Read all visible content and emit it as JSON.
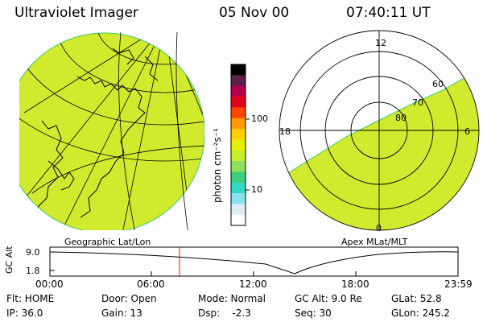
{
  "header": {
    "title": "Ultraviolet Imager",
    "date": "05 Nov 00",
    "time": "07:40:11 UT"
  },
  "colorbar": {
    "label": "photon cm⁻²s⁻¹",
    "ticks": [
      "100",
      "10"
    ],
    "colors": [
      "#000000",
      "#5a1f4b",
      "#b0004b",
      "#e0001a",
      "#ff4500",
      "#ff9b00",
      "#ffd000",
      "#e8ee00",
      "#c7ee2e",
      "#8ee05a",
      "#3ccf7a",
      "#33d9c7",
      "#86e3ec",
      "#d8eef4",
      "#ffffff"
    ]
  },
  "left_panel": {
    "caption": "Geographic Lat/Lon",
    "fill_color": "#d2ea2e"
  },
  "right_panel": {
    "caption": "Apex MLat/MLT",
    "fill_color": "#d2ea2e",
    "mlt_labels": {
      "top": "12",
      "left": "18",
      "right": "6",
      "bottom": "0"
    },
    "lat_labels": [
      "60",
      "70",
      "80"
    ]
  },
  "timeline": {
    "ylabel": "GC Alt",
    "yticks": [
      "9.0",
      "1.8"
    ],
    "xticks": [
      "00:00",
      "06:00",
      "12:00",
      "18:00",
      "23:59"
    ],
    "marker_color": "#ff0000"
  },
  "info": {
    "flt": "Flt: HOME",
    "door": "Door: Open",
    "mode": "Mode: Normal",
    "gcalt": "GC Alt: 9.0 Re",
    "glat": "GLat:  52.8",
    "ip": "IP: 36.0",
    "gain": "Gain: 13",
    "dsp": "Dsp:    -2.3",
    "seq": "Seq: 30",
    "glon": "GLon: 245.2"
  }
}
